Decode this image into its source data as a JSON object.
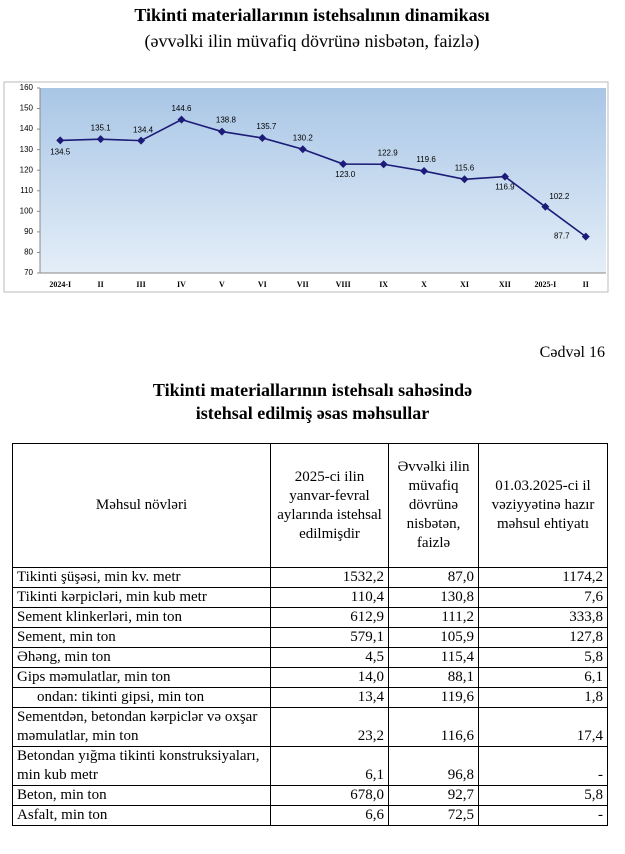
{
  "chart_data": {
    "type": "line",
    "title": "Tikinti materiallarının istehsalının dinamikası",
    "subtitle": "(əvvəlki ilin müvafiq dövrünə nisbətən, faizlə)",
    "categories": [
      "2024-I",
      "II",
      "III",
      "IV",
      "V",
      "VI",
      "VII",
      "VIII",
      "IX",
      "X",
      "XI",
      "XII",
      "2025-I",
      "II"
    ],
    "values": [
      134.5,
      135.1,
      134.4,
      144.6,
      138.8,
      135.7,
      130.2,
      123.0,
      122.9,
      119.6,
      115.6,
      116.9,
      102.2,
      87.7
    ],
    "value_labels": [
      "134.5",
      "135.1",
      "134.4",
      "144.6",
      "138.8",
      "135.7",
      "130.2",
      "123.0",
      "122.9",
      "119.6",
      "115.6",
      "116.9",
      "102.2",
      "87.7"
    ],
    "color": "#1c1c78",
    "ylim": [
      70,
      160
    ],
    "yticks": [
      70,
      80,
      90,
      100,
      110,
      120,
      130,
      140,
      150,
      160
    ]
  },
  "table_caption": "Cədvəl 16",
  "table_title": [
    "Tikinti materiallarının istehsalı sahəsində",
    "istehsal edilmiş əsas məhsullar"
  ],
  "table": {
    "header": [
      "Məhsul növləri",
      "2025-ci ilin yanvar-fevral aylarında istehsal edilmişdir",
      "Əvvəlki ilin müvafiq dövrünə nisbətən, faizlə",
      "01.03.2025-ci il vəziyyətinə hazır məhsul ehtiyatı"
    ],
    "rows": [
      [
        "Tikinti şüşəsi, min kv. metr",
        "1532,2",
        "87,0",
        "1174,2"
      ],
      [
        "Tikinti kərpicləri, min kub metr",
        "110,4",
        "130,8",
        "7,6"
      ],
      [
        "Sement klinkerləri, min ton",
        "612,9",
        "111,2",
        "333,8"
      ],
      [
        "Sement, min ton",
        "579,1",
        "105,9",
        "127,8"
      ],
      [
        "Əhəng, min ton",
        "4,5",
        "115,4",
        "5,8"
      ],
      [
        "Gips məmulatlar, min ton",
        "14,0",
        "88,1",
        "6,1"
      ],
      [
        "ondan: tikinti gipsi, min ton",
        "13,4",
        "119,6",
        "1,8"
      ],
      [
        "Sementdən, betondan kərpiclər və oxşar məmulatlar, min ton",
        "23,2",
        "116,6",
        "17,4"
      ],
      [
        "Betondan yığma tikinti konstruksiyaları, min kub metr",
        "6,1",
        "96,8",
        "-"
      ],
      [
        "Beton, min ton",
        "678,0",
        "92,7",
        "5,8"
      ],
      [
        "Asfalt, min ton",
        "6,6",
        "72,5",
        "-"
      ]
    ]
  }
}
